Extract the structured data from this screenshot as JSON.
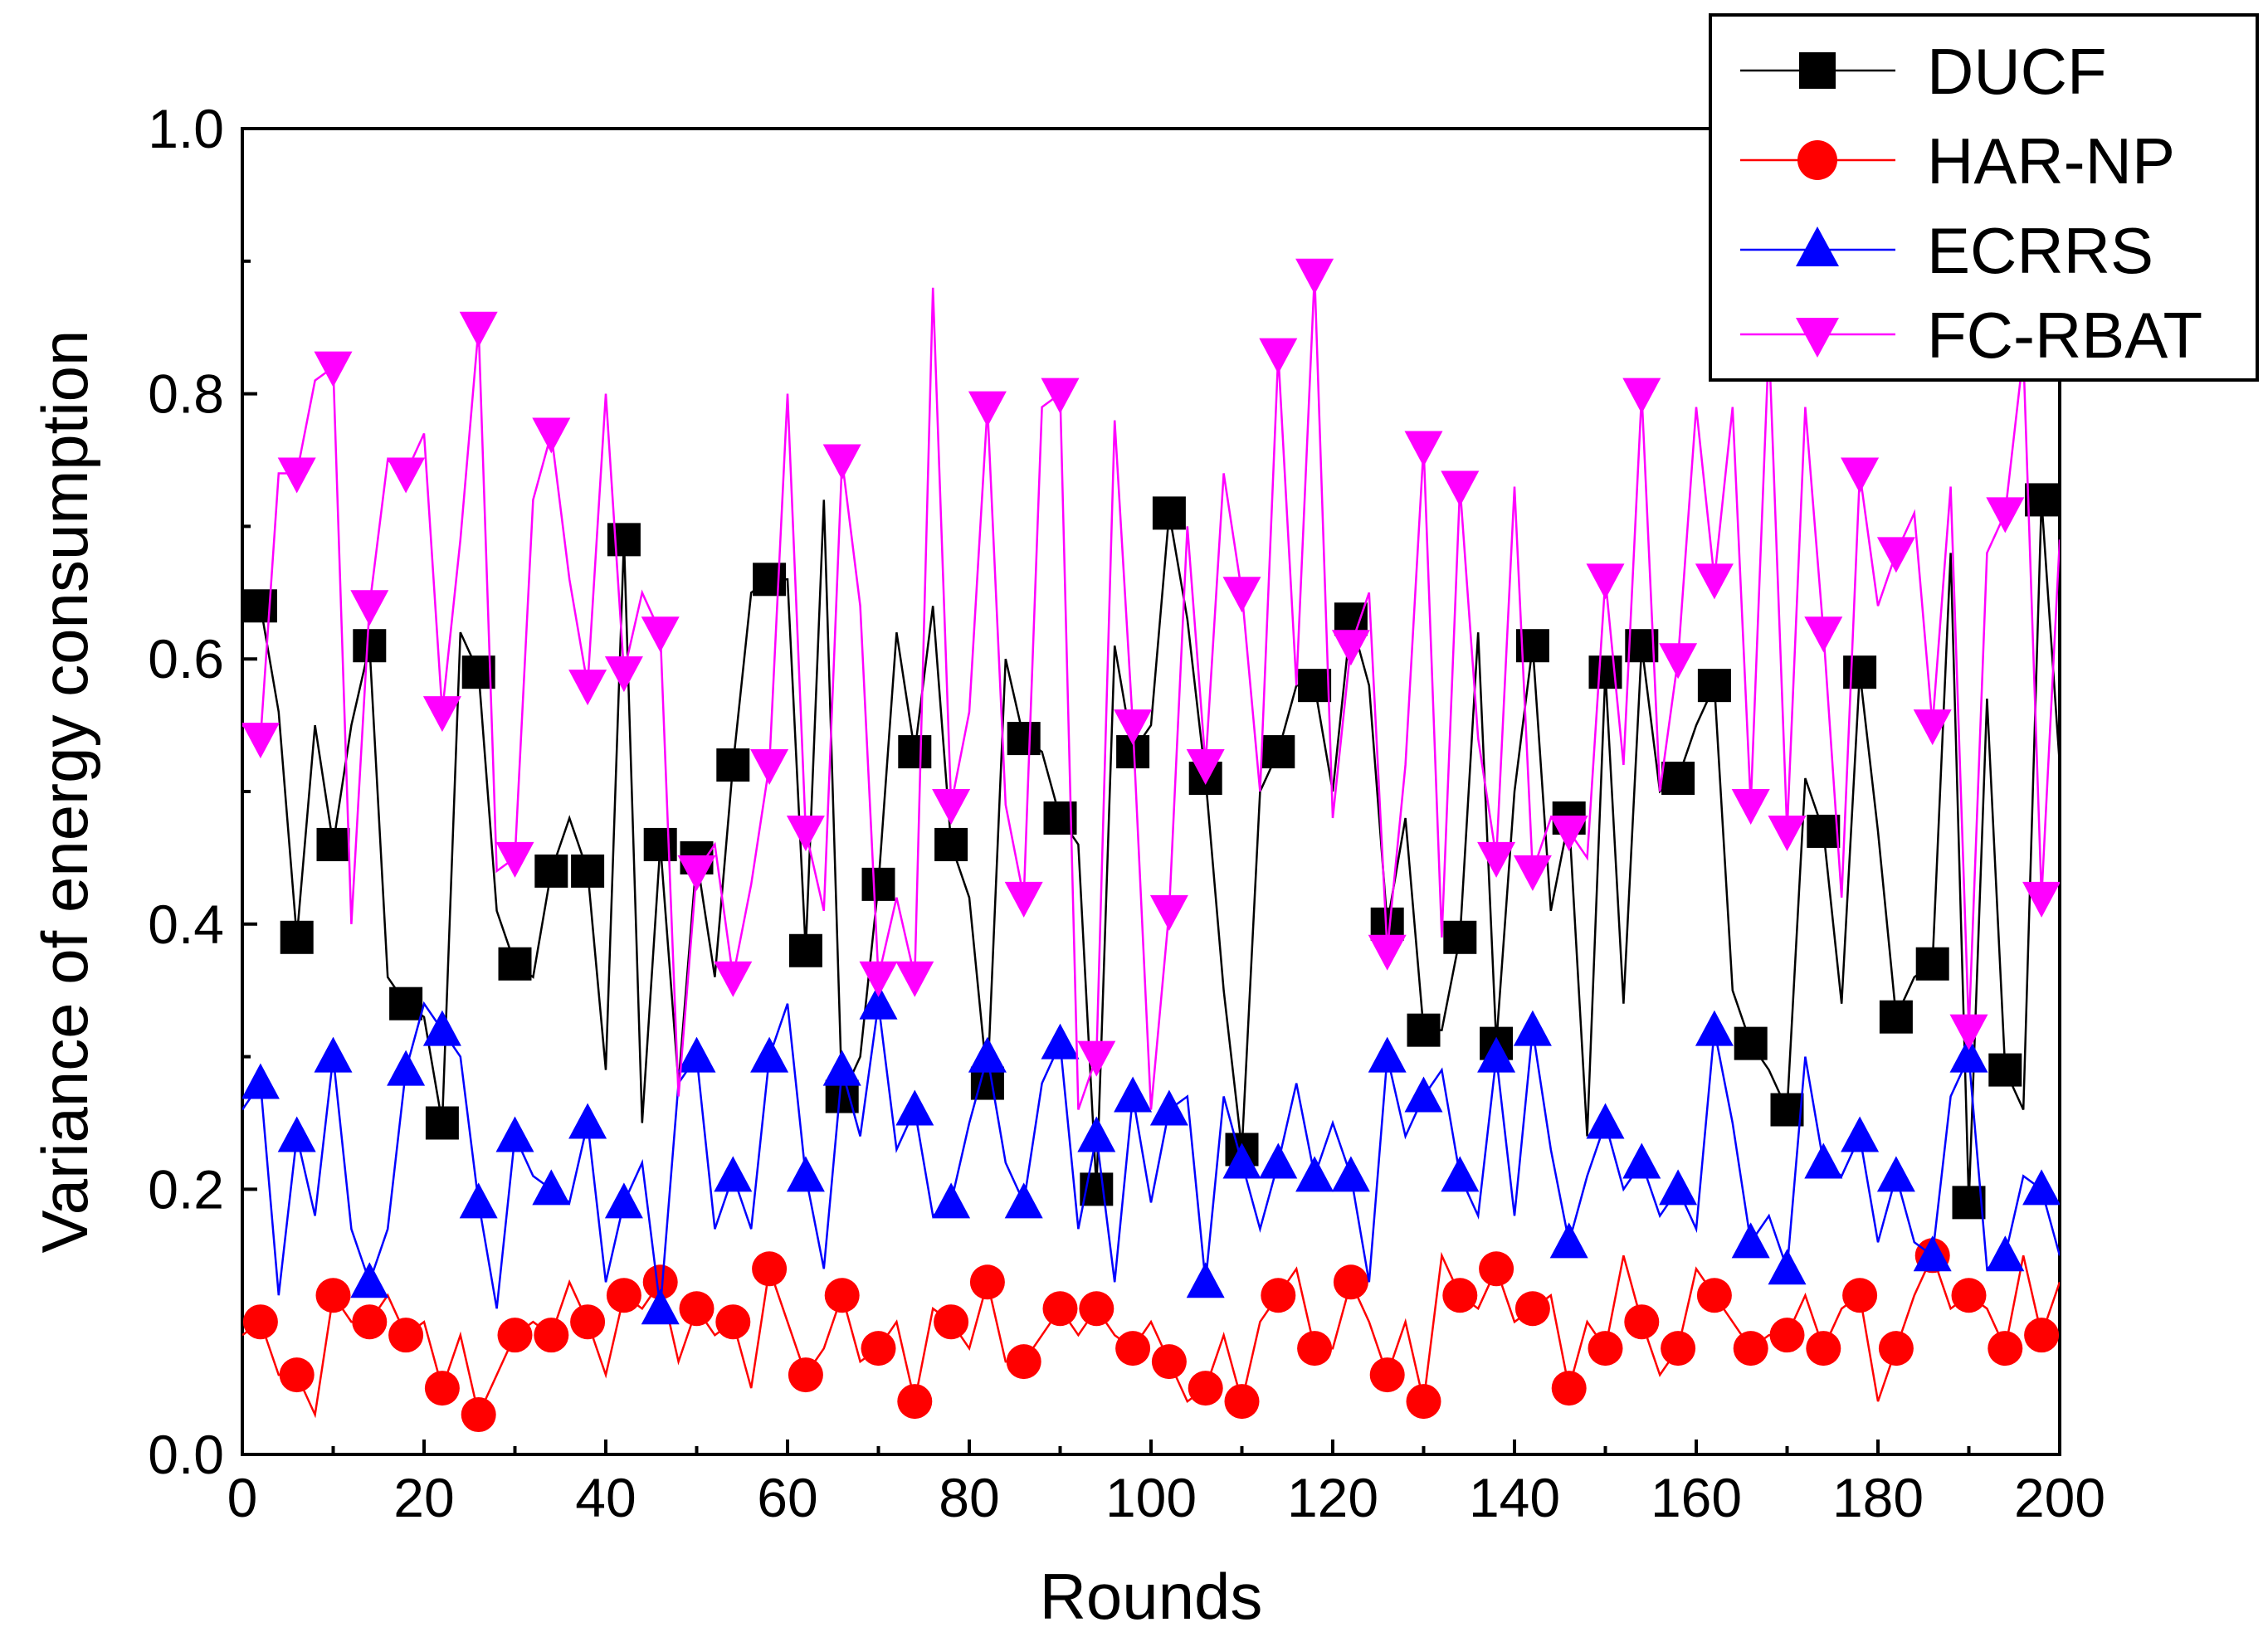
{
  "chart_data": {
    "type": "line",
    "title": "",
    "xlabel": "Rounds",
    "ylabel": "Variance of energy consumption",
    "xlim": [
      0,
      200
    ],
    "ylim": [
      0.0,
      1.0
    ],
    "x_ticks": [
      0,
      20,
      40,
      60,
      80,
      100,
      120,
      140,
      160,
      180,
      200
    ],
    "y_ticks": [
      0.0,
      0.2,
      0.4,
      0.6,
      0.8,
      1.0
    ],
    "x_tick_labels": [
      "0",
      "20",
      "40",
      "60",
      "80",
      "100",
      "120",
      "140",
      "160",
      "180",
      "200"
    ],
    "y_tick_labels": [
      "0.0",
      "0.2",
      "0.4",
      "0.6",
      "0.8",
      "1.0"
    ],
    "grid": false,
    "legend_position": "top-right",
    "x": [
      0,
      2,
      4,
      6,
      8,
      10,
      12,
      14,
      16,
      18,
      20,
      22,
      24,
      26,
      28,
      30,
      32,
      34,
      36,
      38,
      40,
      42,
      44,
      46,
      48,
      50,
      52,
      54,
      56,
      58,
      60,
      62,
      64,
      66,
      68,
      70,
      72,
      74,
      76,
      78,
      80,
      82,
      84,
      86,
      88,
      90,
      92,
      94,
      96,
      98,
      100,
      102,
      104,
      106,
      108,
      110,
      112,
      114,
      116,
      118,
      120,
      122,
      124,
      126,
      128,
      130,
      132,
      134,
      136,
      138,
      140,
      142,
      144,
      146,
      148,
      150,
      152,
      154,
      156,
      158,
      160,
      162,
      164,
      166,
      168,
      170,
      172,
      174,
      176,
      178,
      180,
      182,
      184,
      186,
      188,
      190,
      192,
      194,
      196,
      198,
      200
    ],
    "series": [
      {
        "name": "DUCF",
        "color": "#000000",
        "marker": "square",
        "values": [
          0.65,
          0.64,
          0.56,
          0.39,
          0.55,
          0.46,
          0.55,
          0.61,
          0.36,
          0.34,
          0.33,
          0.25,
          0.62,
          0.59,
          0.41,
          0.37,
          0.36,
          0.44,
          0.48,
          0.44,
          0.29,
          0.69,
          0.25,
          0.46,
          0.28,
          0.45,
          0.36,
          0.52,
          0.65,
          0.66,
          0.66,
          0.38,
          0.72,
          0.27,
          0.3,
          0.43,
          0.62,
          0.53,
          0.64,
          0.46,
          0.42,
          0.28,
          0.6,
          0.54,
          0.53,
          0.48,
          0.46,
          0.2,
          0.61,
          0.53,
          0.55,
          0.71,
          0.63,
          0.51,
          0.35,
          0.23,
          0.5,
          0.53,
          0.58,
          0.58,
          0.5,
          0.63,
          0.58,
          0.4,
          0.48,
          0.32,
          0.32,
          0.39,
          0.62,
          0.31,
          0.5,
          0.61,
          0.41,
          0.48,
          0.24,
          0.59,
          0.34,
          0.61,
          0.5,
          0.51,
          0.55,
          0.58,
          0.35,
          0.31,
          0.29,
          0.26,
          0.51,
          0.47,
          0.34,
          0.59,
          0.47,
          0.33,
          0.36,
          0.37,
          0.68,
          0.19,
          0.57,
          0.29,
          0.26,
          0.72,
          0.52
        ]
      },
      {
        "name": "HAR-NP",
        "color": "#ff0000",
        "marker": "circle",
        "values": [
          0.09,
          0.1,
          0.06,
          0.06,
          0.03,
          0.12,
          0.1,
          0.1,
          0.12,
          0.09,
          0.1,
          0.05,
          0.09,
          0.03,
          0.06,
          0.09,
          0.1,
          0.09,
          0.13,
          0.1,
          0.06,
          0.12,
          0.11,
          0.13,
          0.07,
          0.11,
          0.09,
          0.1,
          0.05,
          0.14,
          0.1,
          0.06,
          0.08,
          0.12,
          0.07,
          0.08,
          0.1,
          0.04,
          0.11,
          0.1,
          0.08,
          0.13,
          0.07,
          0.07,
          0.09,
          0.11,
          0.09,
          0.11,
          0.09,
          0.08,
          0.1,
          0.07,
          0.04,
          0.05,
          0.09,
          0.04,
          0.1,
          0.12,
          0.14,
          0.08,
          0.08,
          0.13,
          0.1,
          0.06,
          0.1,
          0.04,
          0.15,
          0.12,
          0.11,
          0.14,
          0.1,
          0.11,
          0.12,
          0.05,
          0.1,
          0.08,
          0.15,
          0.1,
          0.06,
          0.08,
          0.14,
          0.12,
          0.1,
          0.08,
          0.09,
          0.09,
          0.12,
          0.08,
          0.11,
          0.12,
          0.04,
          0.08,
          0.12,
          0.15,
          0.11,
          0.12,
          0.11,
          0.08,
          0.15,
          0.09,
          0.13
        ]
      },
      {
        "name": "ECRRS",
        "color": "#0000ff",
        "marker": "triangle-up",
        "values": [
          0.26,
          0.28,
          0.12,
          0.24,
          0.18,
          0.3,
          0.17,
          0.13,
          0.17,
          0.29,
          0.34,
          0.32,
          0.3,
          0.19,
          0.11,
          0.24,
          0.21,
          0.2,
          0.19,
          0.25,
          0.13,
          0.19,
          0.22,
          0.11,
          0.28,
          0.3,
          0.17,
          0.21,
          0.17,
          0.3,
          0.34,
          0.21,
          0.14,
          0.29,
          0.24,
          0.34,
          0.23,
          0.26,
          0.18,
          0.19,
          0.25,
          0.3,
          0.22,
          0.19,
          0.28,
          0.31,
          0.17,
          0.24,
          0.13,
          0.27,
          0.19,
          0.26,
          0.27,
          0.13,
          0.27,
          0.22,
          0.17,
          0.22,
          0.28,
          0.21,
          0.25,
          0.21,
          0.13,
          0.3,
          0.24,
          0.27,
          0.29,
          0.21,
          0.18,
          0.3,
          0.18,
          0.32,
          0.23,
          0.16,
          0.21,
          0.25,
          0.2,
          0.22,
          0.18,
          0.2,
          0.17,
          0.32,
          0.25,
          0.16,
          0.18,
          0.14,
          0.3,
          0.22,
          0.21,
          0.24,
          0.16,
          0.21,
          0.16,
          0.15,
          0.27,
          0.3,
          0.14,
          0.15,
          0.21,
          0.2,
          0.15
        ]
      },
      {
        "name": "FC-RBAT",
        "color": "#ff00ff",
        "marker": "triangle-down",
        "values": [
          0.55,
          0.54,
          0.74,
          0.74,
          0.81,
          0.82,
          0.4,
          0.64,
          0.75,
          0.74,
          0.77,
          0.56,
          0.69,
          0.85,
          0.44,
          0.45,
          0.72,
          0.77,
          0.66,
          0.58,
          0.8,
          0.59,
          0.65,
          0.62,
          0.27,
          0.44,
          0.46,
          0.36,
          0.43,
          0.52,
          0.8,
          0.47,
          0.41,
          0.75,
          0.64,
          0.36,
          0.42,
          0.36,
          0.88,
          0.49,
          0.56,
          0.79,
          0.49,
          0.42,
          0.79,
          0.8,
          0.26,
          0.3,
          0.78,
          0.55,
          0.26,
          0.41,
          0.7,
          0.52,
          0.74,
          0.65,
          0.5,
          0.83,
          0.58,
          0.89,
          0.48,
          0.61,
          0.65,
          0.38,
          0.52,
          0.76,
          0.39,
          0.73,
          0.54,
          0.45,
          0.73,
          0.44,
          0.48,
          0.47,
          0.45,
          0.66,
          0.52,
          0.8,
          0.5,
          0.6,
          0.79,
          0.66,
          0.79,
          0.49,
          0.84,
          0.47,
          0.79,
          0.62,
          0.42,
          0.74,
          0.64,
          0.68,
          0.71,
          0.55,
          0.73,
          0.32,
          0.68,
          0.71,
          0.83,
          0.42,
          0.69
        ]
      }
    ]
  }
}
